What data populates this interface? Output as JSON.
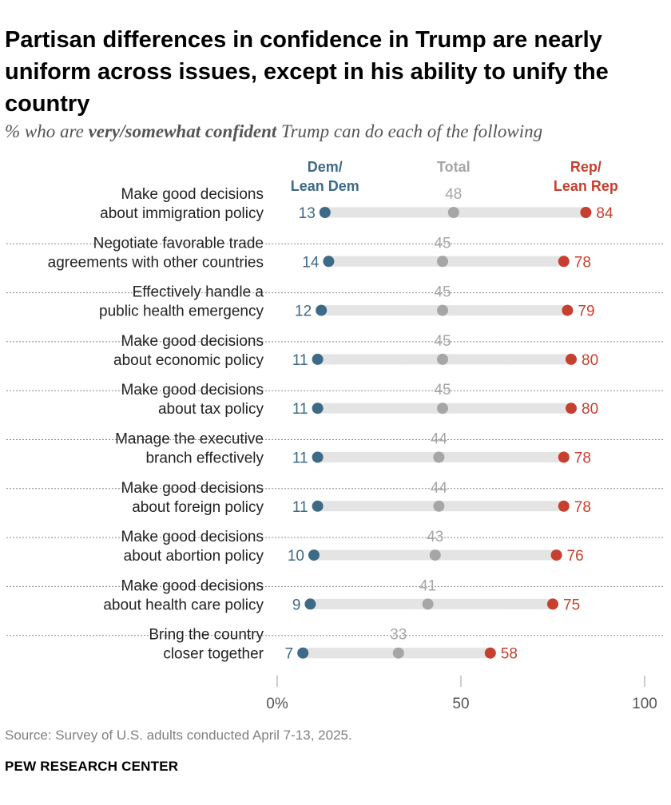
{
  "title": "Partisan differences in confidence in Trump are nearly uniform across issues, except in his ability to unify the country",
  "subtitle": {
    "prefix": "% who are ",
    "emphasis": "very/somewhat confident",
    "suffix": " Trump can do each of the following"
  },
  "source": "Source: Survey of U.S. adults conducted April 7-13, 2025.",
  "brand": "PEW RESEARCH CENTER",
  "colors": {
    "dem": "#3d6a86",
    "total": "#a6a6a6",
    "rep": "#c7402f",
    "track": "#e4e4e4",
    "divider": "#8a8a8a"
  },
  "chart_data": {
    "type": "dot",
    "title": "Partisan differences in confidence in Trump are nearly uniform across issues, except in his ability to unify the country",
    "xlim": [
      0,
      100
    ],
    "ticks": [
      {
        "value": 0,
        "label": "0%"
      },
      {
        "value": 50,
        "label": "50"
      },
      {
        "value": 100,
        "label": "100"
      }
    ],
    "legend": [
      {
        "key": "dem",
        "lines": [
          "Dem/",
          "Lean Dem"
        ]
      },
      {
        "key": "total",
        "lines": [
          "Total"
        ]
      },
      {
        "key": "rep",
        "lines": [
          "Rep/",
          "Lean Rep"
        ]
      }
    ],
    "categories": [
      {
        "lines": [
          "Make good decisions",
          "about immigration policy"
        ],
        "dem": 13,
        "total": 48,
        "rep": 84
      },
      {
        "lines": [
          "Negotiate favorable trade",
          "agreements with other countries"
        ],
        "dem": 14,
        "total": 45,
        "rep": 78
      },
      {
        "lines": [
          "Effectively handle a",
          "public health emergency"
        ],
        "dem": 12,
        "total": 45,
        "rep": 79
      },
      {
        "lines": [
          "Make good decisions",
          "about economic policy"
        ],
        "dem": 11,
        "total": 45,
        "rep": 80
      },
      {
        "lines": [
          "Make good decisions",
          "about tax policy"
        ],
        "dem": 11,
        "total": 45,
        "rep": 80
      },
      {
        "lines": [
          "Manage the executive",
          "branch effectively"
        ],
        "dem": 11,
        "total": 44,
        "rep": 78
      },
      {
        "lines": [
          "Make good decisions",
          "about foreign policy"
        ],
        "dem": 11,
        "total": 44,
        "rep": 78
      },
      {
        "lines": [
          "Make good decisions",
          "about abortion policy"
        ],
        "dem": 10,
        "total": 43,
        "rep": 76
      },
      {
        "lines": [
          "Make good decisions",
          "about health care policy"
        ],
        "dem": 9,
        "total": 41,
        "rep": 75
      },
      {
        "lines": [
          "Bring the country",
          "closer together"
        ],
        "dem": 7,
        "total": 33,
        "rep": 58
      }
    ]
  }
}
